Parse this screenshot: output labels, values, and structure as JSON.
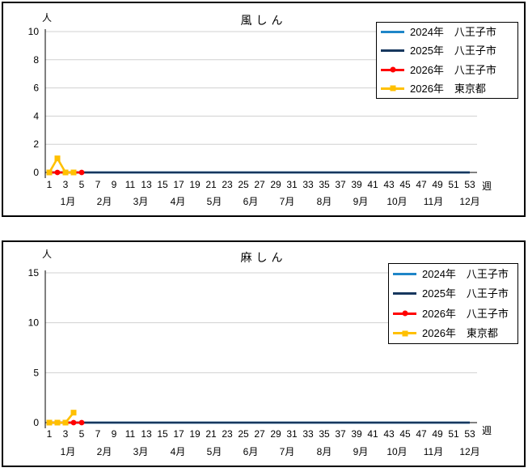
{
  "page": {
    "background": "#FFFFFF"
  },
  "colors": {
    "grid": "#D0D0D0",
    "axis": "#000000",
    "panel_border": "#000000",
    "text": "#000000",
    "series_2024": "#1F86C8",
    "series_2025": "#17375E",
    "series_2026_hachioji": "#FF0000",
    "series_2026_tokyo": "#FFC000"
  },
  "chart_data": [
    {
      "type": "line",
      "title": "風しん",
      "y_axis_unit": "人",
      "x_axis_unit": "週",
      "ylim": [
        0,
        10
      ],
      "yticks": [
        0,
        2,
        4,
        6,
        8,
        10
      ],
      "xticks": [
        1,
        3,
        5,
        7,
        9,
        11,
        13,
        15,
        17,
        19,
        21,
        23,
        25,
        27,
        29,
        31,
        33,
        35,
        37,
        39,
        41,
        43,
        45,
        47,
        49,
        51,
        53
      ],
      "month_labels": [
        "1月",
        "2月",
        "3月",
        "4月",
        "5月",
        "6月",
        "7月",
        "8月",
        "9月",
        "10月",
        "11月",
        "12月"
      ],
      "month_center_weeks": [
        3.3,
        7.8,
        12.3,
        16.9,
        21.4,
        25.9,
        30.4,
        35,
        39.5,
        44,
        48.5,
        53
      ],
      "grid": "horizontal",
      "legend_position": "top-right",
      "series": [
        {
          "label_year": "2024年",
          "label_place": "八王子市",
          "color": "#1F86C8",
          "marker": "none",
          "x_start": 1,
          "values": [
            0,
            0,
            0,
            0,
            0,
            0,
            0,
            0,
            0,
            0,
            0,
            0,
            0,
            0,
            0,
            0,
            0,
            0,
            0,
            0,
            0,
            0,
            0,
            0,
            0,
            0,
            0,
            0,
            0,
            0,
            0,
            0,
            0,
            0,
            0,
            0,
            0,
            0,
            0,
            0,
            0,
            0,
            0,
            0,
            0,
            0,
            0,
            0,
            0,
            0,
            0,
            0,
            0
          ]
        },
        {
          "label_year": "2025年",
          "label_place": "八王子市",
          "color": "#17375E",
          "marker": "none",
          "x_start": 1,
          "values": [
            0,
            0,
            0,
            0,
            0,
            0,
            0,
            0,
            0,
            0,
            0,
            0,
            0,
            0,
            0,
            0,
            0,
            0,
            0,
            0,
            0,
            0,
            0,
            0,
            0,
            0,
            0,
            0,
            0,
            0,
            0,
            0,
            0,
            0,
            0,
            0,
            0,
            0,
            0,
            0,
            0,
            0,
            0,
            0,
            0,
            0,
            0,
            0,
            0,
            0,
            0,
            0,
            0
          ]
        },
        {
          "label_year": "2026年",
          "label_place": "八王子市",
          "color": "#FF0000",
          "marker": "circle",
          "x_start": 1,
          "values": [
            0,
            0,
            0,
            0,
            0
          ]
        },
        {
          "label_year": "2026年",
          "label_place": "東京都",
          "color": "#FFC000",
          "marker": "square",
          "x_start": 1,
          "values": [
            0,
            1,
            0,
            0
          ]
        }
      ]
    },
    {
      "type": "line",
      "title": "麻しん",
      "y_axis_unit": "人",
      "x_axis_unit": "週",
      "ylim": [
        0,
        15
      ],
      "yticks": [
        0,
        5,
        10,
        15
      ],
      "xticks": [
        1,
        3,
        5,
        7,
        9,
        11,
        13,
        15,
        17,
        19,
        21,
        23,
        25,
        27,
        29,
        31,
        33,
        35,
        37,
        39,
        41,
        43,
        45,
        47,
        49,
        51,
        53
      ],
      "month_labels": [
        "1月",
        "2月",
        "3月",
        "4月",
        "5月",
        "6月",
        "7月",
        "8月",
        "9月",
        "10月",
        "11月",
        "12月"
      ],
      "month_center_weeks": [
        3.3,
        7.8,
        12.3,
        16.9,
        21.4,
        25.9,
        30.4,
        35,
        39.5,
        44,
        48.5,
        53
      ],
      "grid": "horizontal",
      "legend_position": "top-right",
      "series": [
        {
          "label_year": "2024年",
          "label_place": "八王子市",
          "color": "#1F86C8",
          "marker": "none",
          "x_start": 1,
          "values": [
            0,
            0,
            0,
            0,
            0,
            0,
            0,
            0,
            0,
            0,
            0,
            0,
            0,
            0,
            0,
            0,
            0,
            0,
            0,
            0,
            0,
            0,
            0,
            0,
            0,
            0,
            0,
            0,
            0,
            0,
            0,
            0,
            0,
            0,
            0,
            0,
            0,
            0,
            0,
            0,
            0,
            0,
            0,
            0,
            0,
            0,
            0,
            0,
            0,
            0,
            0,
            0,
            0
          ]
        },
        {
          "label_year": "2025年",
          "label_place": "八王子市",
          "color": "#17375E",
          "marker": "none",
          "x_start": 1,
          "values": [
            0,
            0,
            0,
            0,
            0,
            0,
            0,
            0,
            0,
            0,
            0,
            0,
            0,
            0,
            0,
            0,
            0,
            0,
            0,
            0,
            0,
            0,
            0,
            0,
            0,
            0,
            0,
            0,
            0,
            0,
            0,
            0,
            0,
            0,
            0,
            0,
            0,
            0,
            0,
            0,
            0,
            0,
            0,
            0,
            0,
            0,
            0,
            0,
            0,
            0,
            0,
            0,
            0
          ]
        },
        {
          "label_year": "2026年",
          "label_place": "八王子市",
          "color": "#FF0000",
          "marker": "circle",
          "x_start": 1,
          "values": [
            0,
            0,
            0,
            0,
            0
          ]
        },
        {
          "label_year": "2026年",
          "label_place": "東京都",
          "color": "#FFC000",
          "marker": "square",
          "x_start": 1,
          "values": [
            0,
            0,
            0,
            1
          ]
        }
      ]
    }
  ]
}
